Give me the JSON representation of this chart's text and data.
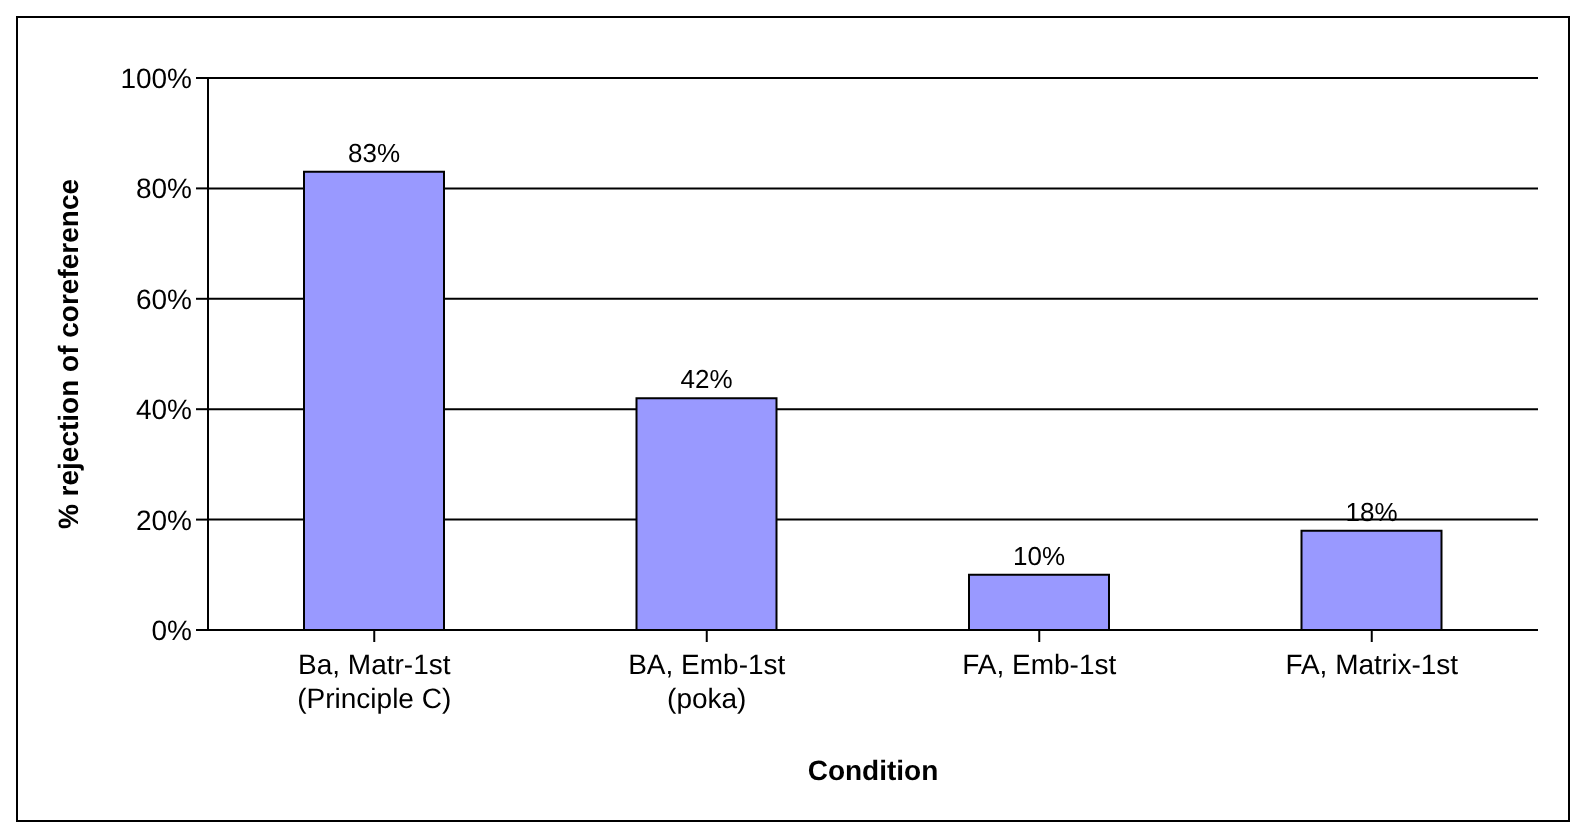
{
  "chart_data": {
    "type": "bar",
    "xlabel": "Condition",
    "ylabel": "% rejection of coreference",
    "categories": [
      "Ba, Matr-1st\n(Principle C)",
      "BA, Emb-1st\n(poka)",
      "FA, Emb-1st",
      "FA, Matrix-1st"
    ],
    "values": [
      83,
      42,
      10,
      18
    ],
    "value_labels": [
      "83%",
      "42%",
      "10%",
      "18%"
    ],
    "color": "#9999ff",
    "ylim": [
      0,
      100
    ],
    "yticks": [
      {
        "value": 0,
        "label": "0%"
      },
      {
        "value": 20,
        "label": "20%"
      },
      {
        "value": 40,
        "label": "40%"
      },
      {
        "value": 60,
        "label": "60%"
      },
      {
        "value": 80,
        "label": "80%"
      },
      {
        "value": 100,
        "label": "100%"
      }
    ],
    "grid": "y",
    "legend": false
  }
}
